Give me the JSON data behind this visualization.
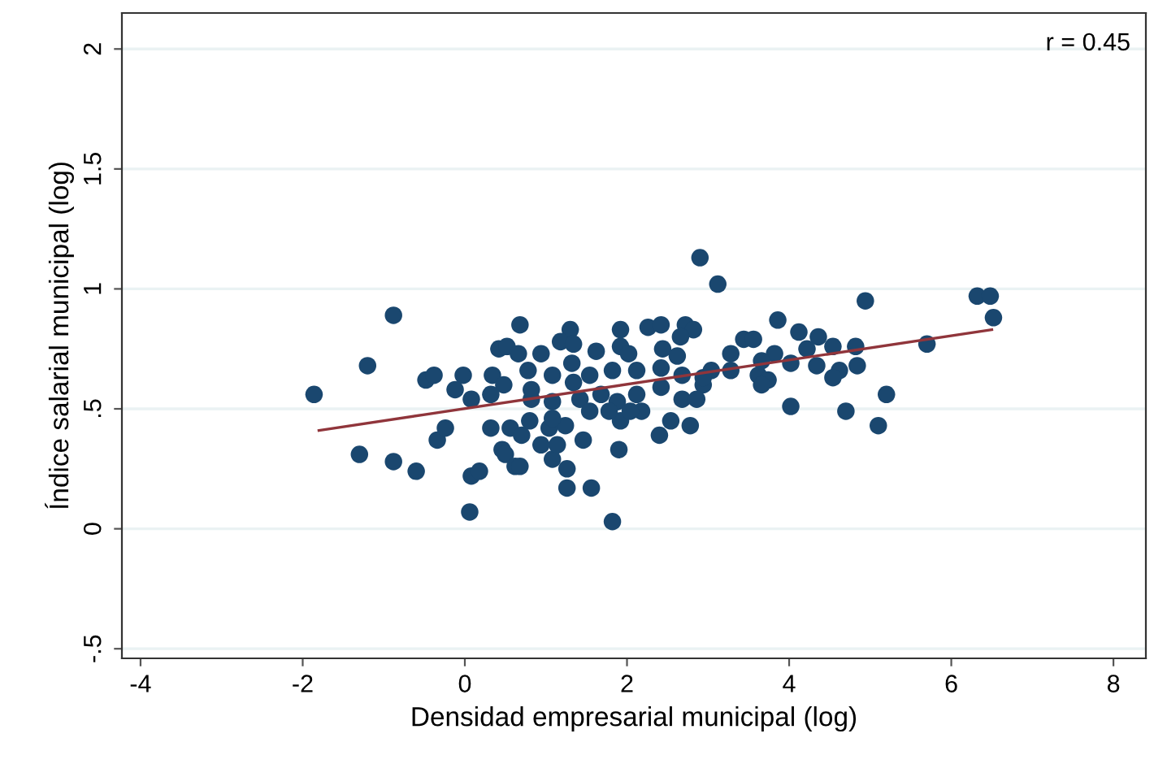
{
  "chart_data": {
    "type": "scatter",
    "xlabel": "Densidad empresarial municipal (log)",
    "ylabel": "Índice salarial municipal (log)",
    "annotations": [
      "r = 0.45"
    ],
    "xlim": [
      -4.23,
      8.4
    ],
    "ylim": [
      -0.54,
      2.15
    ],
    "xticks": [
      -4,
      -2,
      0,
      2,
      4,
      6,
      8
    ],
    "yticks": [
      {
        "value": -0.5,
        "label": "-.5"
      },
      0,
      {
        "value": 0.5,
        "label": ".5"
      },
      1,
      {
        "value": 1.5,
        "label": "1.5"
      },
      2
    ],
    "grid": "y",
    "series": [
      {
        "color": "#1a476f",
        "marker": "circle",
        "x": [
          -0.88,
          0.68,
          -1.2,
          -1.86,
          -1.3,
          -0.88,
          -0.6,
          0.06,
          0.08,
          0.18,
          -0.34,
          -0.24,
          0.32,
          0.56,
          0.7,
          0.46,
          0.5,
          0.62,
          -0.48,
          -0.38,
          -0.02,
          -0.12,
          0.42,
          0.52,
          0.66,
          0.34,
          0.48,
          0.78,
          0.82,
          0.8,
          0.08,
          0.32,
          2.9,
          3.12,
          1.3,
          1.92,
          2.26,
          2.42,
          2.72,
          2.82,
          2.66,
          3.44,
          3.56,
          3.28,
          2.94,
          2.68,
          2.86,
          2.54,
          2.4,
          2.78,
          2.18,
          1.92,
          1.9,
          1.46,
          1.56,
          1.26,
          1.26,
          1.08,
          0.94,
          1.14,
          1.04,
          1.24,
          0.68,
          1.82,
          0.94,
          1.18,
          1.34,
          1.62,
          1.92,
          2.02,
          2.44,
          2.62,
          1.08,
          1.32,
          1.54,
          1.82,
          2.12,
          2.42,
          2.68,
          3.04,
          3.28,
          3.62,
          0.82,
          1.08,
          1.42,
          1.68,
          1.88,
          2.12,
          2.42,
          1.54,
          1.78,
          2.04,
          1.08,
          1.34,
          2.94,
          4.94,
          6.32,
          6.48,
          6.52,
          5.7,
          3.86,
          4.12,
          4.36,
          4.54,
          4.82,
          4.84,
          4.62,
          4.54,
          4.34,
          4.02,
          3.82,
          3.66,
          3.74,
          3.66,
          4.02,
          4.7,
          5.1,
          5.2,
          4.22
        ],
        "values": [
          0.89,
          0.85,
          0.68,
          0.56,
          0.31,
          0.28,
          0.24,
          0.07,
          0.22,
          0.24,
          0.37,
          0.42,
          0.42,
          0.42,
          0.39,
          0.33,
          0.31,
          0.26,
          0.62,
          0.64,
          0.64,
          0.58,
          0.75,
          0.76,
          0.73,
          0.64,
          0.6,
          0.66,
          0.54,
          0.45,
          0.54,
          0.56,
          1.13,
          1.02,
          0.83,
          0.83,
          0.84,
          0.85,
          0.85,
          0.83,
          0.8,
          0.79,
          0.79,
          0.73,
          0.6,
          0.54,
          0.54,
          0.45,
          0.39,
          0.43,
          0.49,
          0.45,
          0.33,
          0.37,
          0.17,
          0.17,
          0.25,
          0.29,
          0.35,
          0.35,
          0.42,
          0.43,
          0.26,
          0.03,
          0.73,
          0.78,
          0.77,
          0.74,
          0.76,
          0.73,
          0.75,
          0.72,
          0.64,
          0.69,
          0.64,
          0.66,
          0.66,
          0.67,
          0.64,
          0.66,
          0.66,
          0.64,
          0.58,
          0.53,
          0.54,
          0.56,
          0.53,
          0.56,
          0.59,
          0.49,
          0.49,
          0.49,
          0.46,
          0.61,
          0.63,
          0.95,
          0.97,
          0.97,
          0.88,
          0.77,
          0.87,
          0.82,
          0.8,
          0.76,
          0.76,
          0.68,
          0.66,
          0.63,
          0.68,
          0.69,
          0.73,
          0.7,
          0.62,
          0.6,
          0.51,
          0.49,
          0.43,
          0.56,
          0.75
        ]
      },
      {
        "type": "line",
        "color": "#90353b",
        "marker": "none",
        "line_style": "solid",
        "x": [
          -1.8,
          6.5
        ],
        "values": [
          0.41,
          0.83
        ]
      }
    ]
  }
}
